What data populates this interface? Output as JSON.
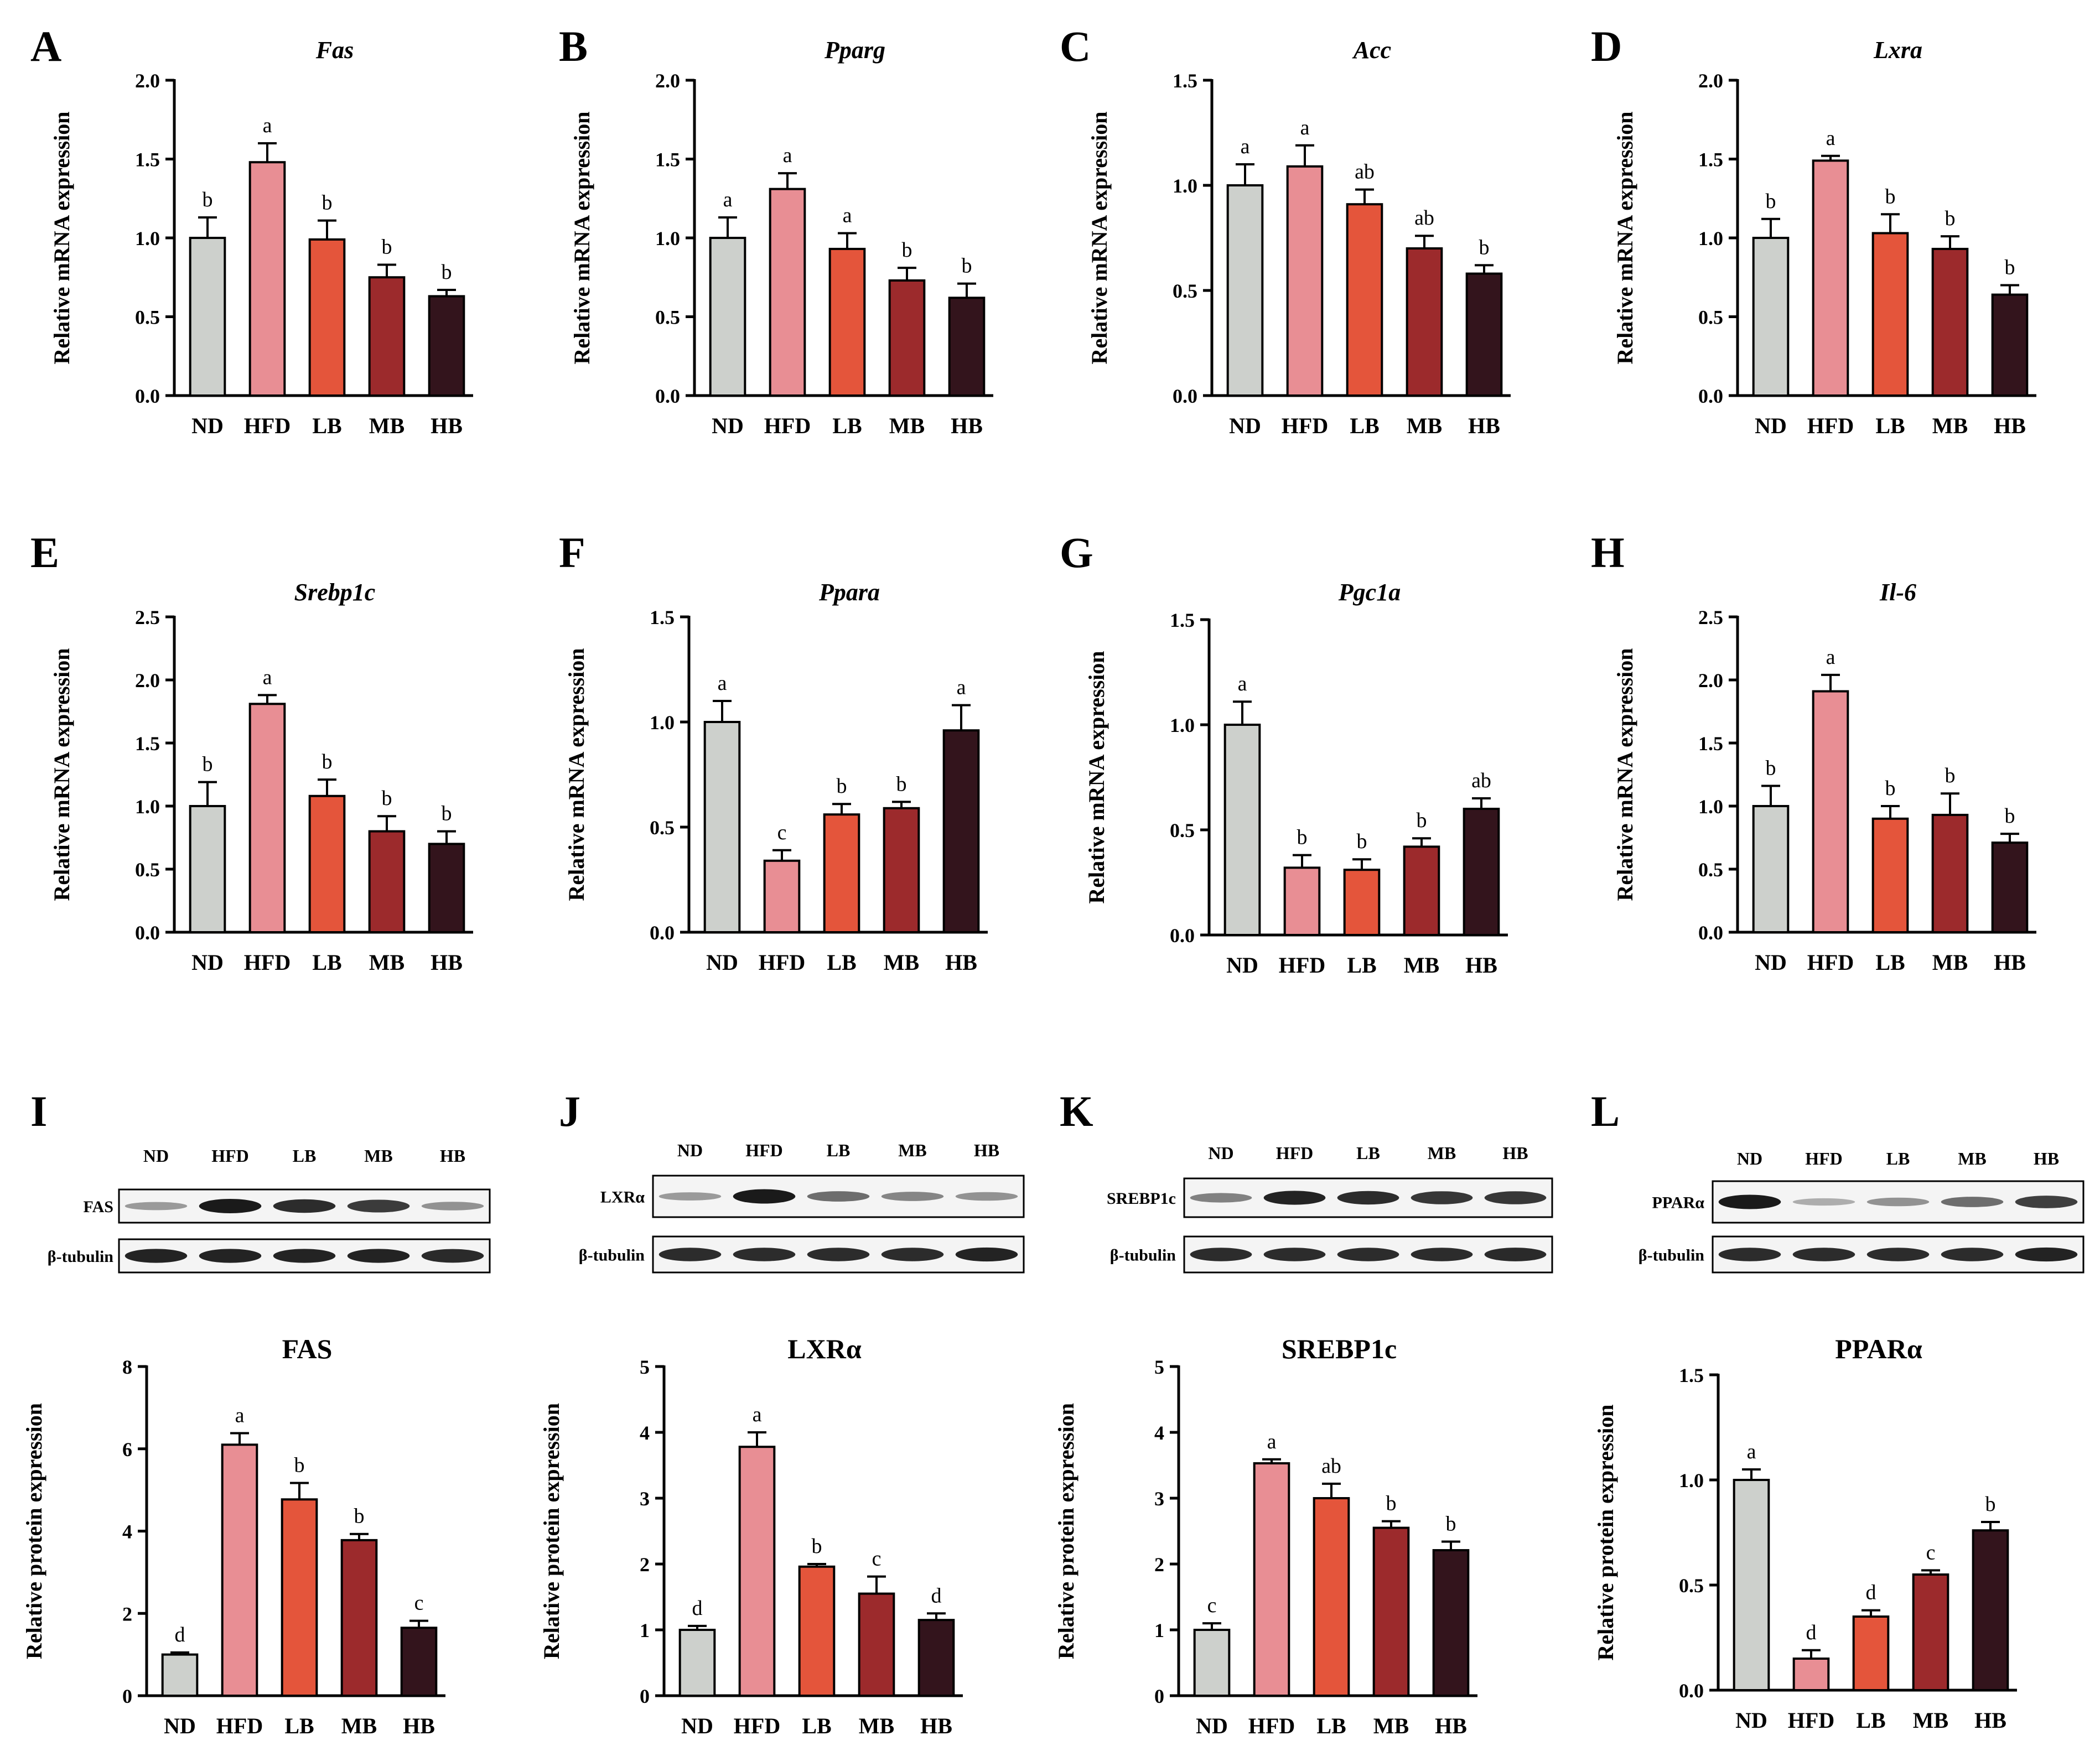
{
  "figure": {
    "colors": {
      "ND": "#cdd0cc",
      "HFD": "#e88e94",
      "LB": "#e4553b",
      "MB": "#9c2a2c",
      "HB": "#33141c",
      "axis": "#000000",
      "blot_band": "#1a1a1a"
    }
  },
  "chart_data": [
    {
      "panel": "A",
      "type": "bar",
      "title": "Fas",
      "title_italic": true,
      "ylabel": "Relative mRNA expression",
      "ylim": [
        0,
        2.0
      ],
      "yticks": [
        "0.0",
        "0.5",
        "1.0",
        "1.5",
        "2.0"
      ],
      "categories": [
        "ND",
        "HFD",
        "LB",
        "MB",
        "HB"
      ],
      "values": [
        1.0,
        1.48,
        0.99,
        0.75,
        0.63
      ],
      "errors": [
        0.13,
        0.12,
        0.12,
        0.08,
        0.04
      ],
      "labels": [
        "b",
        "a",
        "b",
        "b",
        "b"
      ]
    },
    {
      "panel": "B",
      "type": "bar",
      "title": "Pparg",
      "title_italic": true,
      "ylabel": "Relative mRNA expression",
      "ylim": [
        0,
        2.0
      ],
      "yticks": [
        "0.0",
        "0.5",
        "1.0",
        "1.5",
        "2.0"
      ],
      "categories": [
        "ND",
        "HFD",
        "LB",
        "MB",
        "HB"
      ],
      "values": [
        1.0,
        1.31,
        0.93,
        0.73,
        0.62
      ],
      "errors": [
        0.13,
        0.1,
        0.1,
        0.08,
        0.09
      ],
      "labels": [
        "a",
        "a",
        "a",
        "b",
        "b"
      ]
    },
    {
      "panel": "C",
      "type": "bar",
      "title": "Acc",
      "title_italic": true,
      "ylabel": "Relative mRNA expression",
      "ylim": [
        0,
        1.5
      ],
      "yticks": [
        "0.0",
        "0.5",
        "1.0",
        "1.5"
      ],
      "categories": [
        "ND",
        "HFD",
        "LB",
        "MB",
        "HB"
      ],
      "values": [
        1.0,
        1.09,
        0.91,
        0.7,
        0.58
      ],
      "errors": [
        0.1,
        0.1,
        0.07,
        0.06,
        0.04
      ],
      "labels": [
        "a",
        "a",
        "ab",
        "ab",
        "b"
      ]
    },
    {
      "panel": "D",
      "type": "bar",
      "title": "Lxra",
      "title_italic": true,
      "ylabel": "Relative mRNA expression",
      "ylim": [
        0,
        2.0
      ],
      "yticks": [
        "0.0",
        "0.5",
        "1.0",
        "1.5",
        "2.0"
      ],
      "categories": [
        "ND",
        "HFD",
        "LB",
        "MB",
        "HB"
      ],
      "values": [
        1.0,
        1.49,
        1.03,
        0.93,
        0.64
      ],
      "errors": [
        0.12,
        0.03,
        0.12,
        0.08,
        0.06
      ],
      "labels": [
        "b",
        "a",
        "b",
        "b",
        "b"
      ]
    },
    {
      "panel": "E",
      "type": "bar",
      "title": "Srebp1c",
      "title_italic": true,
      "ylabel": "Relative mRNA expression",
      "ylim": [
        0,
        2.5
      ],
      "yticks": [
        "0.0",
        "0.5",
        "1.0",
        "1.5",
        "2.0",
        "2.5"
      ],
      "categories": [
        "ND",
        "HFD",
        "LB",
        "MB",
        "HB"
      ],
      "values": [
        1.0,
        1.81,
        1.08,
        0.8,
        0.7
      ],
      "errors": [
        0.19,
        0.07,
        0.13,
        0.12,
        0.1
      ],
      "labels": [
        "b",
        "a",
        "b",
        "b",
        "b"
      ]
    },
    {
      "panel": "F",
      "type": "bar",
      "title": "Ppara",
      "title_italic": true,
      "ylabel": "Relative mRNA expression",
      "ylim": [
        0,
        1.5
      ],
      "yticks": [
        "0.0",
        "0.5",
        "1.0",
        "1.5"
      ],
      "categories": [
        "ND",
        "HFD",
        "LB",
        "MB",
        "HB"
      ],
      "values": [
        1.0,
        0.34,
        0.56,
        0.59,
        0.96
      ],
      "errors": [
        0.1,
        0.05,
        0.05,
        0.03,
        0.12
      ],
      "labels": [
        "a",
        "c",
        "b",
        "b",
        "a"
      ]
    },
    {
      "panel": "G",
      "type": "bar",
      "title": "Pgc1a",
      "title_italic": true,
      "ylabel": "Relative mRNA expression",
      "ylim": [
        0,
        1.5
      ],
      "yticks": [
        "0.0",
        "0.5",
        "1.0",
        "1.5"
      ],
      "categories": [
        "ND",
        "HFD",
        "LB",
        "MB",
        "HB"
      ],
      "values": [
        1.0,
        0.32,
        0.31,
        0.42,
        0.6
      ],
      "errors": [
        0.11,
        0.06,
        0.05,
        0.04,
        0.05
      ],
      "labels": [
        "a",
        "b",
        "b",
        "b",
        "ab"
      ]
    },
    {
      "panel": "H",
      "type": "bar",
      "title": "Il-6",
      "title_italic": true,
      "ylabel": "Relative mRNA expression",
      "ylim": [
        0,
        2.5
      ],
      "yticks": [
        "0.0",
        "0.5",
        "1.0",
        "1.5",
        "2.0",
        "2.5"
      ],
      "categories": [
        "ND",
        "HFD",
        "LB",
        "MB",
        "HB"
      ],
      "values": [
        1.0,
        1.91,
        0.9,
        0.93,
        0.71
      ],
      "errors": [
        0.16,
        0.13,
        0.1,
        0.17,
        0.07
      ],
      "labels": [
        "b",
        "a",
        "b",
        "b",
        "b"
      ]
    },
    {
      "panel": "I",
      "type": "bar",
      "title": "FAS",
      "title_italic": false,
      "ylabel": "Relative protein expression",
      "ylim": [
        0,
        8
      ],
      "yticks": [
        "0",
        "2",
        "4",
        "6",
        "8"
      ],
      "categories": [
        "ND",
        "HFD",
        "LB",
        "MB",
        "HB"
      ],
      "values": [
        1.0,
        6.1,
        4.77,
        3.78,
        1.65
      ],
      "errors": [
        0.05,
        0.28,
        0.4,
        0.15,
        0.17
      ],
      "labels": [
        "d",
        "a",
        "b",
        "b",
        "c"
      ]
    },
    {
      "panel": "J",
      "type": "bar",
      "title": "LXRα",
      "title_italic": false,
      "ylabel": "Relative protein expression",
      "ylim": [
        0,
        5
      ],
      "yticks": [
        "0",
        "1",
        "2",
        "3",
        "4",
        "5"
      ],
      "categories": [
        "ND",
        "HFD",
        "LB",
        "MB",
        "HB"
      ],
      "values": [
        1.0,
        3.78,
        1.96,
        1.55,
        1.15
      ],
      "errors": [
        0.06,
        0.22,
        0.04,
        0.26,
        0.1
      ],
      "labels": [
        "d",
        "a",
        "b",
        "c",
        "d"
      ]
    },
    {
      "panel": "K",
      "type": "bar",
      "title": "SREBP1c",
      "title_italic": false,
      "ylabel": "Relative protein expression",
      "ylim": [
        0,
        5
      ],
      "yticks": [
        "0",
        "1",
        "2",
        "3",
        "4",
        "5"
      ],
      "categories": [
        "ND",
        "HFD",
        "LB",
        "MB",
        "HB"
      ],
      "values": [
        1.0,
        3.53,
        3.0,
        2.55,
        2.21
      ],
      "errors": [
        0.1,
        0.06,
        0.22,
        0.1,
        0.13
      ],
      "labels": [
        "c",
        "a",
        "ab",
        "b",
        "b"
      ]
    },
    {
      "panel": "L",
      "type": "bar",
      "title": "PPARα",
      "title_italic": false,
      "ylabel": "Relative protein expression",
      "ylim": [
        0,
        1.5
      ],
      "yticks": [
        "0.0",
        "0.5",
        "1.0",
        "1.5"
      ],
      "categories": [
        "ND",
        "HFD",
        "LB",
        "MB",
        "HB"
      ],
      "values": [
        1.0,
        0.15,
        0.35,
        0.55,
        0.76
      ],
      "errors": [
        0.05,
        0.04,
        0.03,
        0.02,
        0.04
      ],
      "labels": [
        "a",
        "d",
        "d",
        "c",
        "b"
      ]
    }
  ],
  "blots": [
    {
      "panel": "I",
      "lanes": [
        "ND",
        "HFD",
        "LB",
        "MB",
        "HB"
      ],
      "target": "FAS",
      "loading": "β-tubulin",
      "target_intensity": [
        0.3,
        1.0,
        0.9,
        0.82,
        0.35
      ],
      "loading_intensity": [
        0.95,
        0.95,
        0.95,
        0.95,
        0.92
      ]
    },
    {
      "panel": "J",
      "lanes": [
        "ND",
        "HFD",
        "LB",
        "MB",
        "HB"
      ],
      "target": "LXRα",
      "loading": "β-tubulin",
      "target_intensity": [
        0.3,
        1.0,
        0.55,
        0.42,
        0.35
      ],
      "loading_intensity": [
        0.9,
        0.9,
        0.9,
        0.9,
        0.95
      ]
    },
    {
      "panel": "K",
      "lanes": [
        "ND",
        "HFD",
        "LB",
        "MB",
        "HB"
      ],
      "target": "SREBP1c",
      "loading": "β-tubulin",
      "target_intensity": [
        0.45,
        0.95,
        0.9,
        0.85,
        0.85
      ],
      "loading_intensity": [
        0.9,
        0.9,
        0.9,
        0.9,
        0.92
      ]
    },
    {
      "panel": "L",
      "lanes": [
        "ND",
        "HFD",
        "LB",
        "MB",
        "HB"
      ],
      "target": "PPARα",
      "loading": "β-tubulin",
      "target_intensity": [
        1.0,
        0.2,
        0.35,
        0.55,
        0.8
      ],
      "loading_intensity": [
        0.9,
        0.9,
        0.9,
        0.9,
        0.95
      ]
    }
  ]
}
